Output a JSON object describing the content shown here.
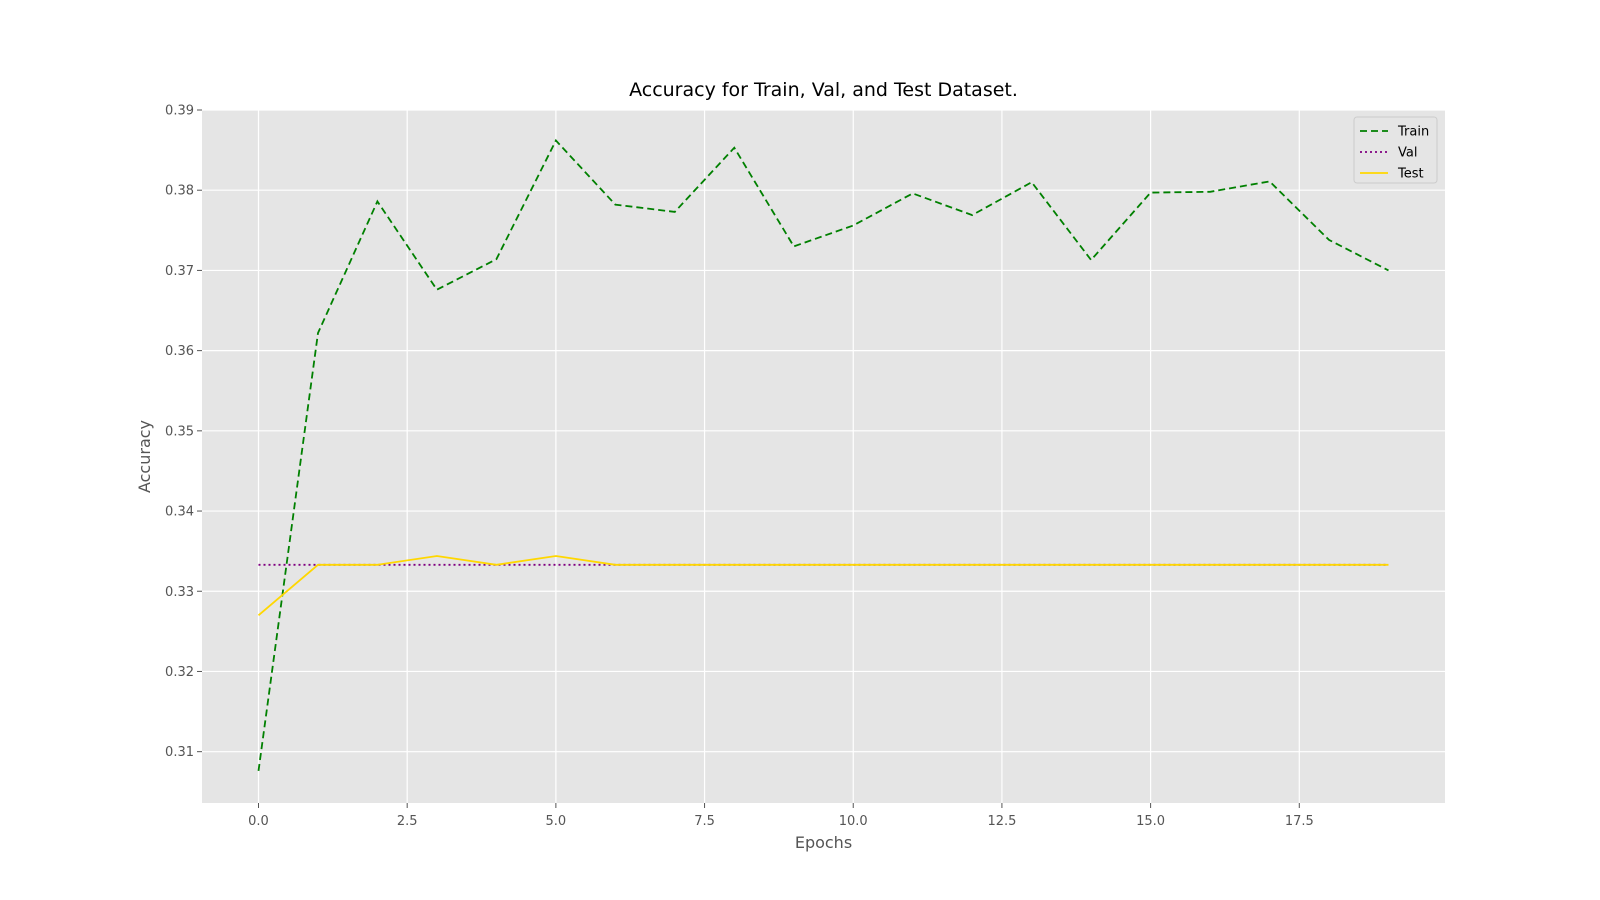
{
  "chart_data": {
    "type": "line",
    "title": "Accuracy for Train, Val, and Test Dataset.",
    "xlabel": "Epochs",
    "ylabel": "Accuracy",
    "xlim": [
      -0.95,
      19.95
    ],
    "ylim": [
      0.3036,
      0.39
    ],
    "xticks": [
      0.0,
      2.5,
      5.0,
      7.5,
      10.0,
      12.5,
      15.0,
      17.5
    ],
    "xtick_labels": [
      "0.0",
      "2.5",
      "5.0",
      "7.5",
      "10.0",
      "12.5",
      "15.0",
      "17.5"
    ],
    "yticks": [
      0.31,
      0.32,
      0.33,
      0.34,
      0.35,
      0.36,
      0.37,
      0.38,
      0.39
    ],
    "ytick_labels": [
      "0.31",
      "0.32",
      "0.33",
      "0.34",
      "0.35",
      "0.36",
      "0.37",
      "0.38",
      "0.39"
    ],
    "grid": true,
    "legend_position": "top-right",
    "x": [
      0,
      1,
      2,
      3,
      4,
      5,
      6,
      7,
      8,
      9,
      10,
      11,
      12,
      13,
      14,
      15,
      16,
      17,
      18,
      19
    ],
    "series": [
      {
        "name": "Train",
        "color": "#008000",
        "line_style": "dashed",
        "values": [
          0.3076,
          0.3622,
          0.3786,
          0.3676,
          0.3714,
          0.3862,
          0.3782,
          0.3773,
          0.3853,
          0.373,
          0.3756,
          0.3796,
          0.3769,
          0.381,
          0.3713,
          0.3797,
          0.3798,
          0.3811,
          0.3738,
          0.37
        ]
      },
      {
        "name": "Val",
        "color": "#800080",
        "line_style": "dotted",
        "values": [
          0.3333,
          0.3333,
          0.3333,
          0.3333,
          0.3333,
          0.3333,
          0.3333,
          0.3333,
          0.3333,
          0.3333,
          0.3333,
          0.3333,
          0.3333,
          0.3333,
          0.3333,
          0.3333,
          0.3333,
          0.3333,
          0.3333,
          0.3333
        ]
      },
      {
        "name": "Test",
        "color": "#FFD700",
        "line_style": "solid",
        "values": [
          0.327,
          0.3333,
          0.3333,
          0.3344,
          0.3333,
          0.3344,
          0.3333,
          0.3333,
          0.3333,
          0.3333,
          0.3333,
          0.3333,
          0.3333,
          0.3333,
          0.3333,
          0.3333,
          0.3333,
          0.3333,
          0.3333,
          0.3333
        ]
      }
    ],
    "colors": {
      "plot_background": "#E5E5E5",
      "grid": "#FFFFFF",
      "tick_text": "#555555"
    }
  }
}
